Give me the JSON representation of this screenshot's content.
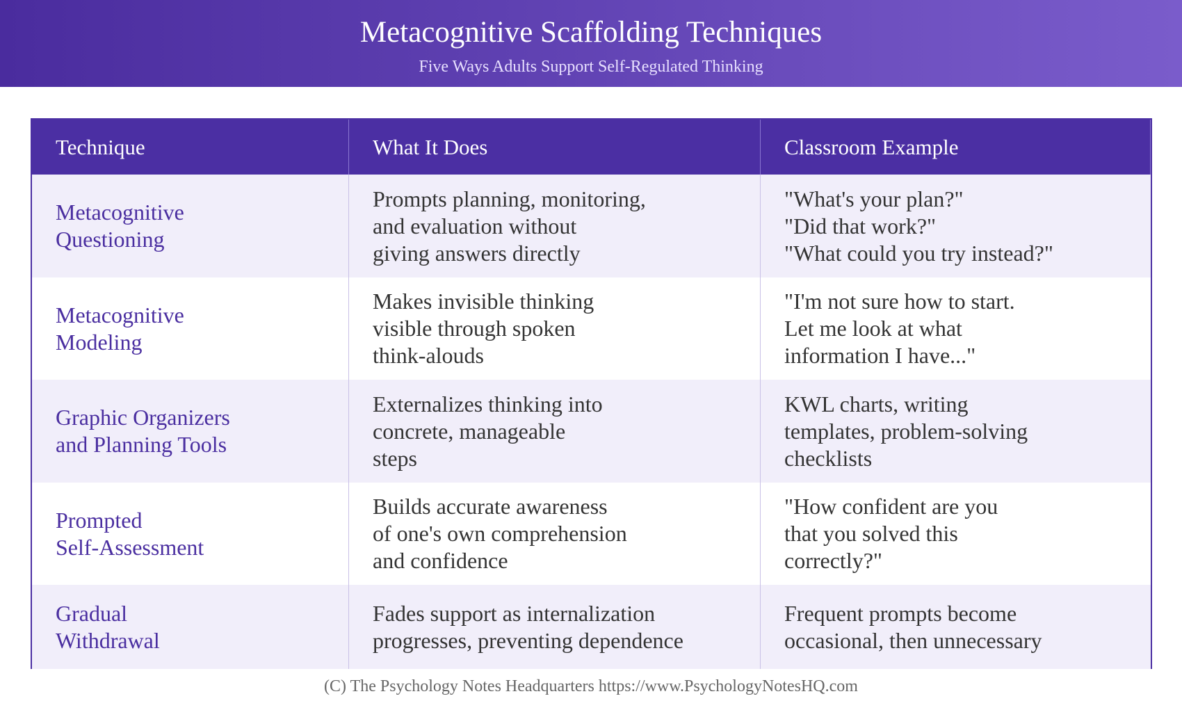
{
  "header": {
    "title": "Metacognitive Scaffolding Techniques",
    "subtitle": "Five Ways Adults Support Self-Regulated Thinking"
  },
  "table": {
    "columns": [
      "Technique",
      "What It Does",
      "Classroom Example"
    ],
    "rows": [
      [
        [
          "Metacognitive",
          "Questioning"
        ],
        [
          "Prompts planning, monitoring,",
          "and evaluation without",
          "giving answers directly"
        ],
        [
          "\"What's your plan?\"",
          "\"Did that work?\"",
          "\"What could you try instead?\""
        ]
      ],
      [
        [
          "Metacognitive",
          "Modeling"
        ],
        [
          "Makes invisible thinking",
          "visible through spoken",
          "think-alouds"
        ],
        [
          "\"I'm not sure how to start.",
          "Let me look at what",
          "information I have...\""
        ]
      ],
      [
        [
          "Graphic Organizers",
          "and Planning Tools"
        ],
        [
          "Externalizes thinking into",
          "concrete, manageable",
          "steps"
        ],
        [
          "KWL charts, writing",
          "templates, problem-solving",
          "checklists"
        ]
      ],
      [
        [
          "Prompted",
          "Self-Assessment"
        ],
        [
          "Builds accurate awareness",
          "of one's own comprehension",
          "and confidence"
        ],
        [
          "\"How confident are you",
          "that you solved this",
          "correctly?\""
        ]
      ],
      [
        [
          "Gradual",
          "Withdrawal"
        ],
        [
          "Fades support as internalization",
          "progresses, preventing dependence"
        ],
        [
          "Frequent prompts become",
          "occasional, then unnecessary"
        ]
      ]
    ]
  },
  "footer": "(C) The Psychology Notes Headquarters https://www.PsychologyNotesHQ.com"
}
